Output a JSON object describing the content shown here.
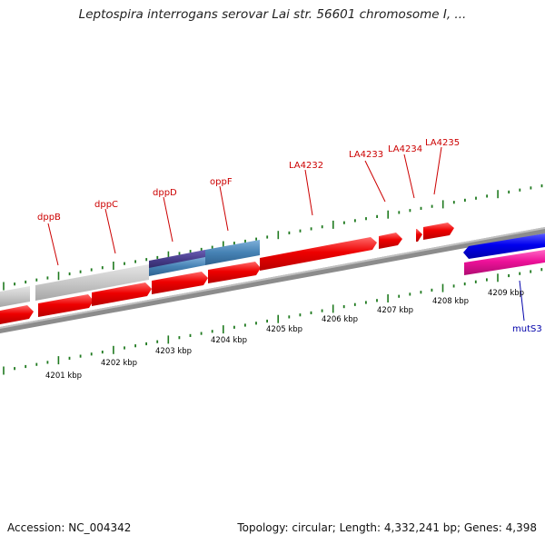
{
  "header": {
    "title": "Leptospira interrogans serovar Lai str. 56601 chromosome I, ..."
  },
  "footer": {
    "accession": "Accession: NC_004342",
    "summary": "Topology: circular; Length: 4,332,241 bp; Genes: 4,398"
  },
  "ruler": {
    "labels": [
      "4201 kbp",
      "4202 kbp",
      "4203 kbp",
      "4204 kbp",
      "4205 kbp",
      "4206 kbp",
      "4207 kbp",
      "4208 kbp",
      "4209 kbp"
    ]
  },
  "genes": {
    "labels": [
      "dppB",
      "dppC",
      "dppD",
      "oppF",
      "LA4232",
      "LA4233",
      "LA4234",
      "LA4235",
      "mutS3"
    ]
  },
  "colors": {
    "forward_cds": "#ee0000",
    "forward_label": "#cc0000",
    "reverse_cds": "#0000ee",
    "reverse_label": "#0000aa",
    "pink_feature": "#ee1199",
    "grey_feature": "#c8c8c8",
    "steel_feature": "#4682b4",
    "slate_feature": "#483d8b",
    "tick": "#1f7a1f",
    "backbone": "#8c8c8c"
  }
}
